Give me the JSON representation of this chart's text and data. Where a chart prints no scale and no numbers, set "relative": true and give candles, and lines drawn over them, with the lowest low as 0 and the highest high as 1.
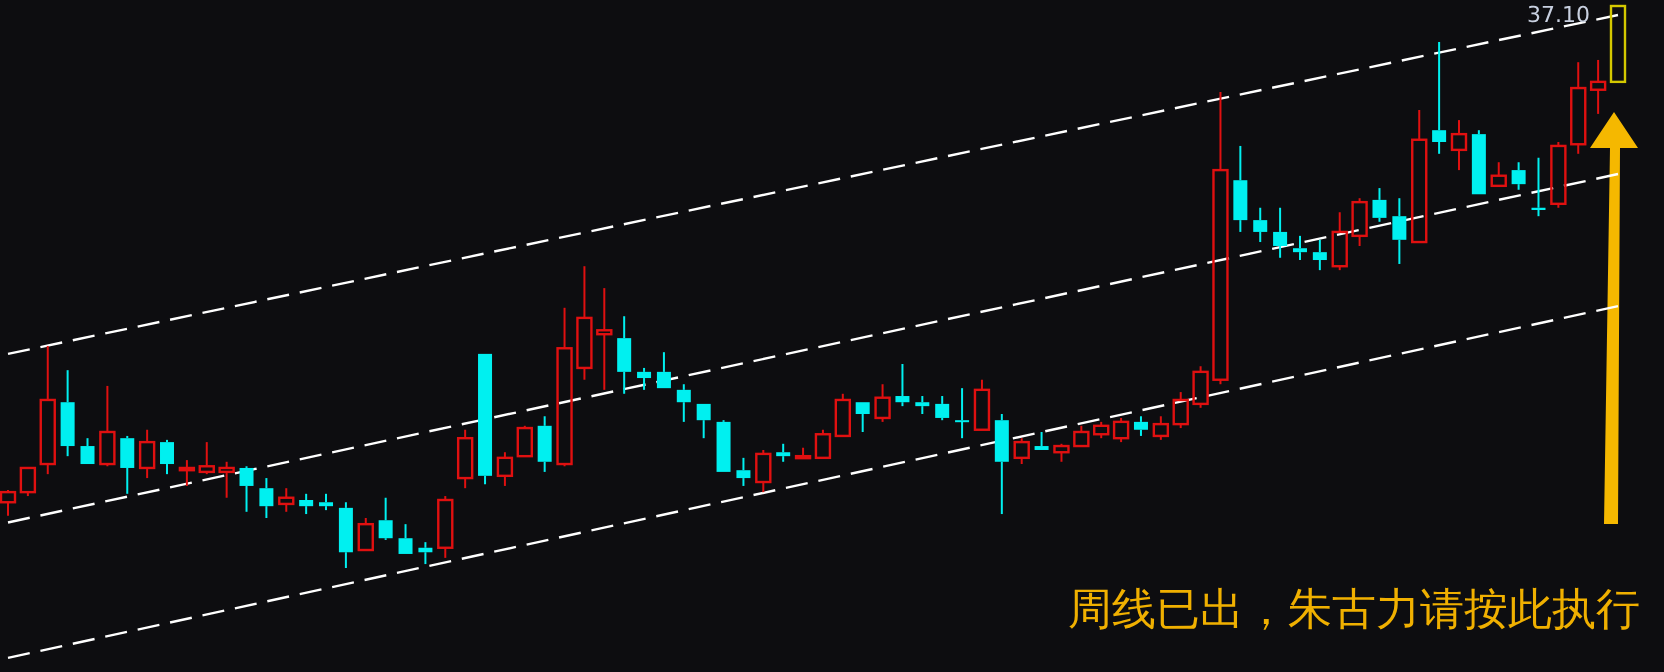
{
  "chart_data": {
    "type": "candlestick",
    "relative": true,
    "categories": [
      null,
      null,
      null,
      null,
      null,
      null,
      null,
      null,
      null,
      null,
      null,
      null,
      null,
      null,
      null,
      null,
      null,
      null,
      null,
      null,
      null,
      null,
      null,
      null,
      null,
      null,
      null,
      null,
      null,
      null,
      null,
      null,
      null,
      null,
      null,
      null,
      null,
      null,
      null,
      null,
      null,
      null,
      null,
      null,
      null,
      null,
      null,
      null,
      null,
      null,
      null,
      null,
      null,
      null,
      null,
      null,
      null,
      null,
      null,
      null,
      null,
      null,
      null,
      null,
      null,
      null,
      null,
      null,
      null,
      null,
      null,
      null,
      null,
      null,
      null,
      null,
      null,
      null,
      null,
      null,
      null,
      null
    ],
    "ohlc": [
      [
        0.117,
        0.139,
        0.093,
        0.135
      ],
      [
        0.135,
        0.178,
        0.128,
        0.178
      ],
      [
        0.185,
        0.395,
        0.167,
        0.299
      ],
      [
        0.295,
        0.352,
        0.199,
        0.217
      ],
      [
        0.217,
        0.231,
        0.185,
        0.185
      ],
      [
        0.185,
        0.324,
        0.181,
        0.242
      ],
      [
        0.231,
        0.235,
        0.132,
        0.178
      ],
      [
        0.178,
        0.246,
        0.16,
        0.224
      ],
      [
        0.224,
        0.228,
        0.167,
        0.185
      ],
      [
        0.174,
        0.192,
        0.146,
        0.178
      ],
      [
        0.171,
        0.224,
        0.167,
        0.181
      ],
      [
        0.171,
        0.189,
        0.125,
        0.178
      ],
      [
        0.178,
        0.181,
        0.1,
        0.146
      ],
      [
        0.142,
        0.16,
        0.089,
        0.11
      ],
      [
        0.114,
        0.142,
        0.1,
        0.125
      ],
      [
        0.121,
        0.132,
        0.096,
        0.11
      ],
      [
        0.117,
        0.132,
        0.103,
        0.11
      ],
      [
        0.107,
        0.117,
        0,
        0.028
      ],
      [
        0.032,
        0.089,
        0.032,
        0.078
      ],
      [
        0.085,
        0.125,
        0.05,
        0.053
      ],
      [
        0.053,
        0.078,
        0.025,
        0.025
      ],
      [
        0.036,
        0.046,
        0.007,
        0.028
      ],
      [
        0.036,
        0.128,
        0.018,
        0.121
      ],
      [
        0.16,
        0.246,
        0.142,
        0.231
      ],
      [
        0.381,
        0.381,
        0.149,
        0.164
      ],
      [
        0.164,
        0.206,
        0.146,
        0.196
      ],
      [
        0.199,
        0.253,
        0.199,
        0.249
      ],
      [
        0.253,
        0.27,
        0.171,
        0.189
      ],
      [
        0.185,
        0.463,
        0.181,
        0.391
      ],
      [
        0.356,
        0.537,
        0.335,
        0.445
      ],
      [
        0.416,
        0.498,
        0.317,
        0.423
      ],
      [
        0.409,
        0.448,
        0.31,
        0.349
      ],
      [
        0.349,
        0.356,
        0.317,
        0.338
      ],
      [
        0.349,
        0.384,
        0.32,
        0.32
      ],
      [
        0.317,
        0.327,
        0.26,
        0.295
      ],
      [
        0.292,
        0.292,
        0.231,
        0.263
      ],
      [
        0.26,
        0.263,
        0.171,
        0.171
      ],
      [
        0.174,
        0.196,
        0.146,
        0.16
      ],
      [
        0.153,
        0.21,
        0.135,
        0.203
      ],
      [
        0.206,
        0.221,
        0.189,
        0.199
      ],
      [
        0.196,
        0.214,
        0.196,
        0.199
      ],
      [
        0.196,
        0.246,
        0.196,
        0.238
      ],
      [
        0.235,
        0.31,
        0.235,
        0.299
      ],
      [
        0.295,
        0.295,
        0.242,
        0.274
      ],
      [
        0.267,
        0.327,
        0.26,
        0.303
      ],
      [
        0.306,
        0.363,
        0.288,
        0.295
      ],
      [
        0.295,
        0.306,
        0.274,
        0.288
      ],
      [
        0.292,
        0.306,
        0.263,
        0.267
      ],
      [
        0.263,
        0.32,
        0.231,
        0.26
      ],
      [
        0.246,
        0.335,
        0.246,
        0.317
      ],
      [
        0.263,
        0.274,
        0.096,
        0.189
      ],
      [
        0.196,
        0.231,
        0.185,
        0.224
      ],
      [
        0.217,
        0.242,
        0.21,
        0.21
      ],
      [
        0.206,
        0.221,
        0.189,
        0.217
      ],
      [
        0.217,
        0.253,
        0.217,
        0.242
      ],
      [
        0.238,
        0.26,
        0.231,
        0.253
      ],
      [
        0.231,
        0.267,
        0.224,
        0.26
      ],
      [
        0.26,
        0.27,
        0.235,
        0.246
      ],
      [
        0.235,
        0.27,
        0.228,
        0.256
      ],
      [
        0.256,
        0.313,
        0.249,
        0.299
      ],
      [
        0.292,
        0.359,
        0.285,
        0.349
      ],
      [
        0.335,
        0.847,
        0.327,
        0.708
      ],
      [
        0.69,
        0.751,
        0.598,
        0.619
      ],
      [
        0.619,
        0.641,
        0.58,
        0.598
      ],
      [
        0.598,
        0.641,
        0.552,
        0.573
      ],
      [
        0.569,
        0.591,
        0.548,
        0.562
      ],
      [
        0.562,
        0.584,
        0.53,
        0.548
      ],
      [
        0.537,
        0.633,
        0.53,
        0.598
      ],
      [
        0.591,
        0.658,
        0.573,
        0.651
      ],
      [
        0.655,
        0.676,
        0.616,
        0.623
      ],
      [
        0.626,
        0.658,
        0.541,
        0.584
      ],
      [
        0.58,
        0.815,
        0.58,
        0.762
      ],
      [
        0.779,
        0.936,
        0.737,
        0.758
      ],
      [
        0.744,
        0.797,
        0.708,
        0.772
      ],
      [
        0.772,
        0.779,
        0.665,
        0.665
      ],
      [
        0.68,
        0.722,
        0.68,
        0.698
      ],
      [
        0.708,
        0.722,
        0.673,
        0.683
      ],
      [
        0.641,
        0.73,
        0.626,
        0.637
      ],
      [
        0.648,
        0.758,
        0.641,
        0.751
      ],
      [
        0.754,
        0.9,
        0.737,
        0.854
      ],
      [
        0.851,
        0.904,
        0.808,
        0.865
      ],
      [
        0.865,
        1,
        0.865,
        1
      ]
    ],
    "colors": [
      "#e01010",
      "#e01010",
      "#e01010",
      "#00f0f0",
      "#00f0f0",
      "#e01010",
      "#00f0f0",
      "#e01010",
      "#00f0f0",
      "#e01010",
      "#e01010",
      "#e01010",
      "#00f0f0",
      "#00f0f0",
      "#e01010",
      "#00f0f0",
      "#00f0f0",
      "#00f0f0",
      "#e01010",
      "#00f0f0",
      "#00f0f0",
      "#00f0f0",
      "#e01010",
      "#e01010",
      "#00f0f0",
      "#e01010",
      "#e01010",
      "#00f0f0",
      "#e01010",
      "#e01010",
      "#e01010",
      "#00f0f0",
      "#00f0f0",
      "#00f0f0",
      "#00f0f0",
      "#00f0f0",
      "#00f0f0",
      "#00f0f0",
      "#e01010",
      "#00f0f0",
      "#e01010",
      "#e01010",
      "#e01010",
      "#00f0f0",
      "#e01010",
      "#00f0f0",
      "#00f0f0",
      "#00f0f0",
      "#00f0f0",
      "#e01010",
      "#00f0f0",
      "#e01010",
      "#00f0f0",
      "#e01010",
      "#e01010",
      "#e01010",
      "#e01010",
      "#00f0f0",
      "#e01010",
      "#e01010",
      "#e01010",
      "#e01010",
      "#00f0f0",
      "#00f0f0",
      "#00f0f0",
      "#00f0f0",
      "#00f0f0",
      "#e01010",
      "#e01010",
      "#00f0f0",
      "#00f0f0",
      "#e01010",
      "#00f0f0",
      "#e01010",
      "#00f0f0",
      "#e01010",
      "#00f0f0",
      "#00f0f0",
      "#e01010",
      "#e01010",
      "#e01010",
      "#d4c800"
    ],
    "series": [
      {
        "type": "line",
        "color": "#ffffff",
        "line_style": "dashed",
        "values": [
          0.381,
          null,
          null,
          null,
          null,
          null,
          null,
          null,
          null,
          null,
          null,
          null,
          null,
          null,
          null,
          null,
          null,
          null,
          null,
          null,
          null,
          null,
          null,
          null,
          null,
          null,
          null,
          null,
          null,
          null,
          null,
          null,
          null,
          null,
          null,
          null,
          null,
          null,
          null,
          null,
          null,
          null,
          null,
          null,
          null,
          null,
          null,
          null,
          null,
          null,
          null,
          null,
          null,
          null,
          null,
          null,
          null,
          null,
          null,
          null,
          null,
          null,
          null,
          null,
          null,
          null,
          null,
          null,
          null,
          null,
          null,
          null,
          null,
          null,
          null,
          null,
          null,
          null,
          null,
          null,
          null,
          0.984
        ]
      },
      {
        "type": "line",
        "color": "#ffffff",
        "line_style": "dashed",
        "values": [
          0.081,
          null,
          null,
          null,
          null,
          null,
          null,
          null,
          null,
          null,
          null,
          null,
          null,
          null,
          null,
          null,
          null,
          null,
          null,
          null,
          null,
          null,
          null,
          null,
          null,
          null,
          null,
          null,
          null,
          null,
          null,
          null,
          null,
          null,
          null,
          null,
          null,
          null,
          null,
          null,
          null,
          null,
          null,
          null,
          null,
          null,
          null,
          null,
          null,
          null,
          null,
          null,
          null,
          null,
          null,
          null,
          null,
          null,
          null,
          null,
          null,
          null,
          null,
          null,
          null,
          null,
          null,
          null,
          null,
          null,
          null,
          null,
          null,
          null,
          null,
          null,
          null,
          null,
          null,
          null,
          null,
          0.701
        ]
      },
      {
        "type": "line",
        "color": "#ffffff",
        "line_style": "dashed",
        "values": [
          -0.16,
          null,
          null,
          null,
          null,
          null,
          null,
          null,
          null,
          null,
          null,
          null,
          null,
          null,
          null,
          null,
          null,
          null,
          null,
          null,
          null,
          null,
          null,
          null,
          null,
          null,
          null,
          null,
          null,
          null,
          null,
          null,
          null,
          null,
          null,
          null,
          null,
          null,
          null,
          null,
          null,
          null,
          null,
          null,
          null,
          null,
          null,
          null,
          null,
          null,
          null,
          null,
          null,
          null,
          null,
          null,
          null,
          null,
          null,
          null,
          null,
          null,
          null,
          null,
          null,
          null,
          null,
          null,
          null,
          null,
          null,
          null,
          null,
          null,
          null,
          null,
          null,
          null,
          null,
          null,
          null,
          0.466
        ]
      }
    ],
    "annotations": [
      "37.10",
      "周线已出，朱古力请按此执行"
    ]
  }
}
